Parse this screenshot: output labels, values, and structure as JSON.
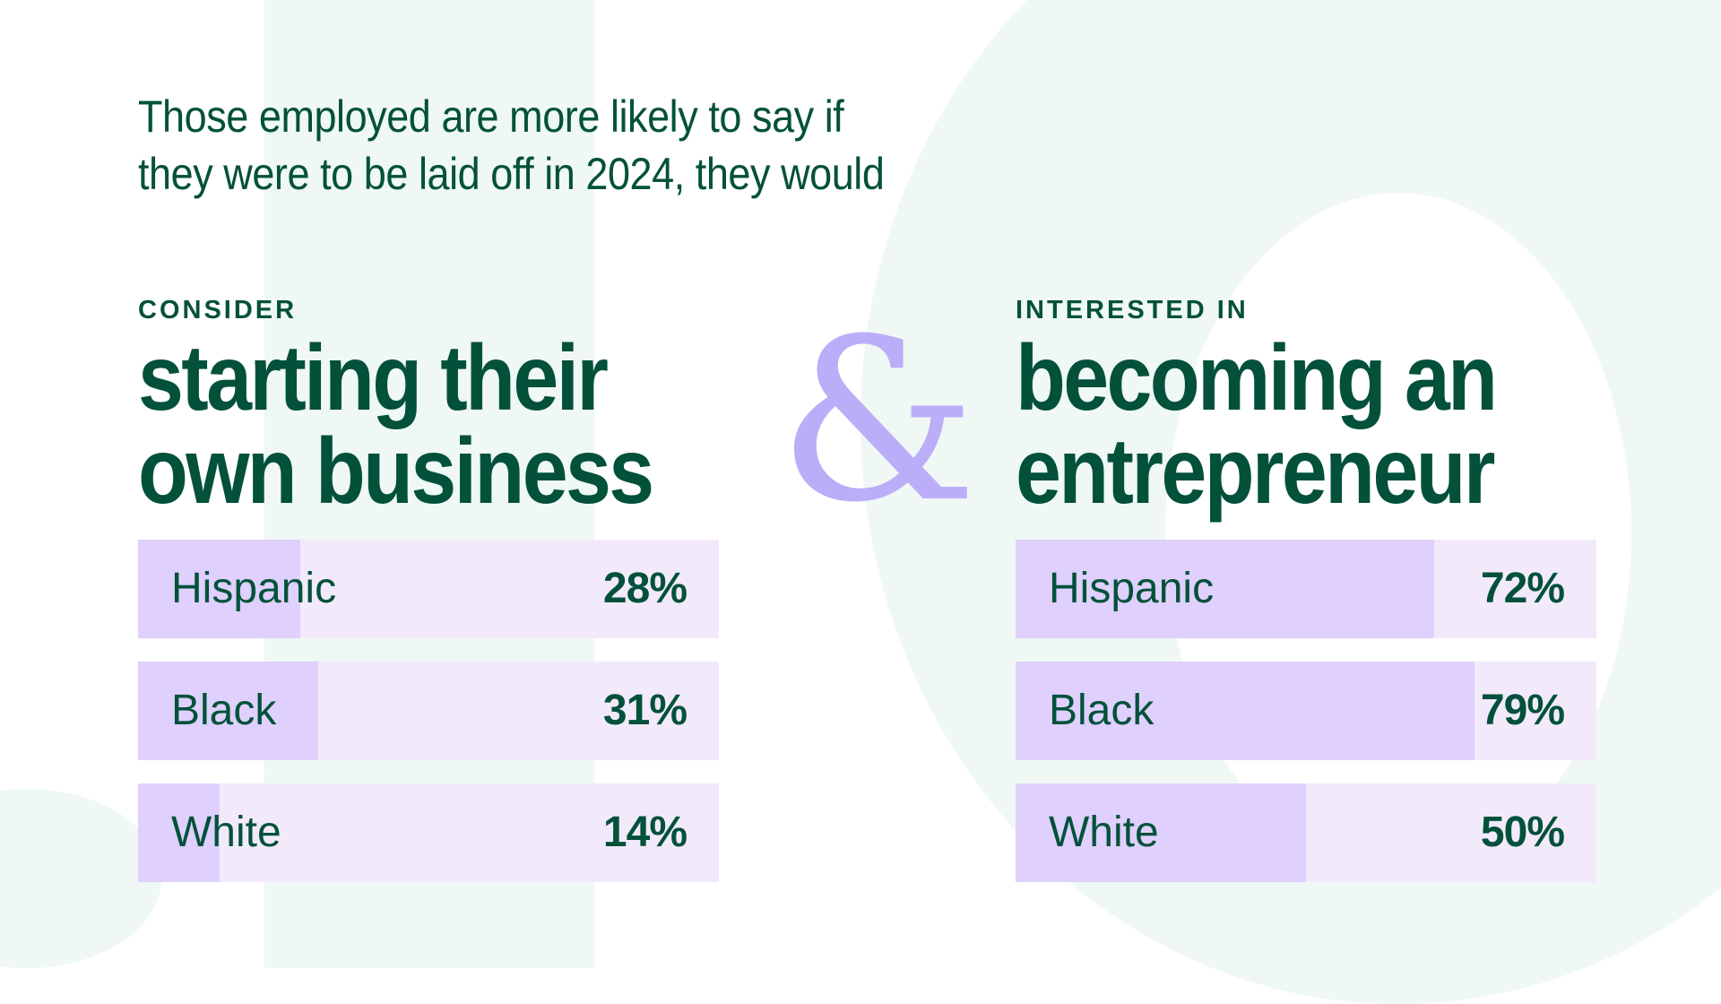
{
  "intro": {
    "line1": "Those employed are more likely to say if",
    "line2": "they were to be laid off in 2024, they would"
  },
  "ampersand": "&",
  "left": {
    "kicker": "CONSIDER",
    "headline_line1": "starting their",
    "headline_line2": "own business",
    "rows": [
      {
        "label": "Hispanic",
        "value": "28%",
        "pct": 28
      },
      {
        "label": "Black",
        "value": "31%",
        "pct": 31
      },
      {
        "label": "White",
        "value": "14%",
        "pct": 14
      }
    ]
  },
  "right": {
    "kicker": "INTERESTED IN",
    "headline_line1": "becoming an",
    "headline_line2": "entrepreneur",
    "rows": [
      {
        "label": "Hispanic",
        "value": "72%",
        "pct": 72
      },
      {
        "label": "Black",
        "value": "79%",
        "pct": 79
      },
      {
        "label": "White",
        "value": "50%",
        "pct": 50
      }
    ]
  },
  "colors": {
    "text": "#03513a",
    "bar_track": "#f2eafb",
    "bar_fill": "#dfd0fd",
    "ampersand": "#bbaef8",
    "background_shape": "#eff8f4"
  },
  "chart_data": [
    {
      "type": "bar",
      "title": "Consider starting their own business",
      "categories": [
        "Hispanic",
        "Black",
        "White"
      ],
      "values": [
        28,
        31,
        14
      ],
      "xlabel": "",
      "ylabel": "%",
      "ylim": [
        0,
        100
      ],
      "orientation": "horizontal"
    },
    {
      "type": "bar",
      "title": "Interested in becoming an entrepreneur",
      "categories": [
        "Hispanic",
        "Black",
        "White"
      ],
      "values": [
        72,
        79,
        50
      ],
      "xlabel": "",
      "ylabel": "%",
      "ylim": [
        0,
        100
      ],
      "orientation": "horizontal"
    }
  ]
}
